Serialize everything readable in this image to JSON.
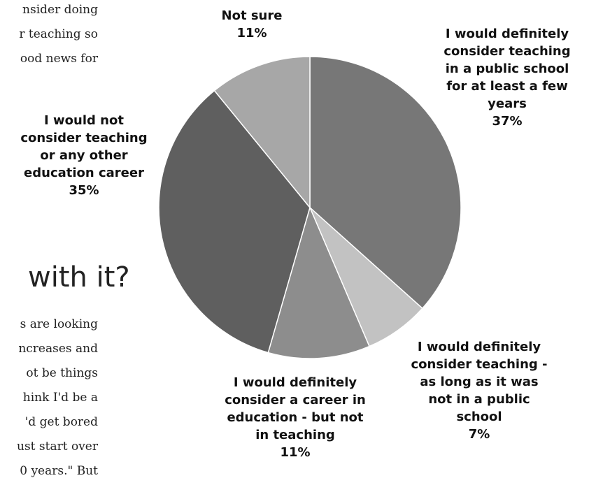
{
  "article": {
    "heading": "with it?",
    "fragments_top": [
      "nsider doing",
      "r teaching so",
      "ood news for"
    ],
    "fragments_bottom": [
      "s are looking",
      "ncreases and",
      "ot be things",
      "hink I'd be a",
      "'d get bored",
      "ust start over",
      "0 years.\" But"
    ]
  },
  "chart_data": {
    "type": "pie",
    "start_angle_deg": 0,
    "direction": "clockwise",
    "slices": [
      {
        "label_lines": [
          "I would definitely",
          "consider teaching",
          "in a public school",
          "for at least a few",
          "years"
        ],
        "value": 37,
        "pct": "37%",
        "color": "#777777"
      },
      {
        "label_lines": [
          "I would definitely",
          "consider teaching -",
          "as long as it was",
          "not in a public",
          "school"
        ],
        "value": 7,
        "pct": "7%",
        "color": "#c2c2c2"
      },
      {
        "label_lines": [
          "I would definitely",
          "consider a career in",
          "education - but not",
          "in teaching"
        ],
        "value": 11,
        "pct": "11%",
        "color": "#8d8d8d"
      },
      {
        "label_lines": [
          "I would not",
          "consider teaching",
          "or any other",
          "education career"
        ],
        "value": 35,
        "pct": "35%",
        "color": "#5f5f5f"
      },
      {
        "label_lines": [
          "Not sure"
        ],
        "value": 11,
        "pct": "11%",
        "color": "#a7a7a7"
      }
    ]
  }
}
